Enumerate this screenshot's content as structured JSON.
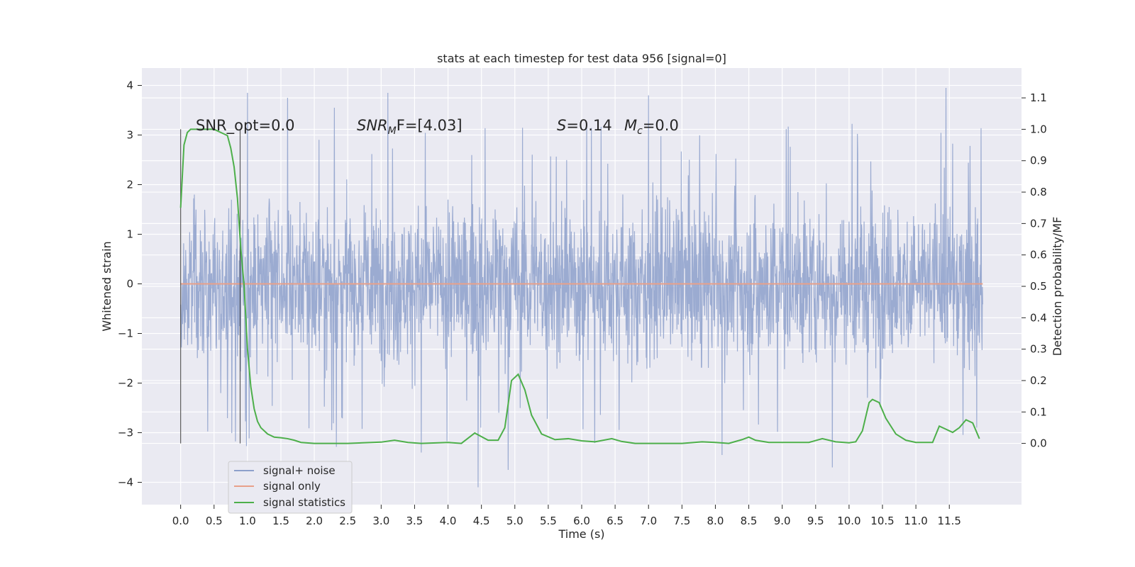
{
  "chart_data": {
    "type": "line",
    "title": "stats at each timestep for test data 956 [signal=0]",
    "xlabel": "Time (s)",
    "ylabel": "Whitened strain",
    "y2label": "Detection probability/MF",
    "xlim": [
      -0.58,
      12.58
    ],
    "ylim": [
      -4.45,
      4.35
    ],
    "y2lim": [
      -0.195,
      1.195
    ],
    "x_ticks": [
      "0.0",
      "0.5",
      "1.0",
      "1.5",
      "2.0",
      "2.5",
      "3.0",
      "3.5",
      "4.0",
      "4.5",
      "5.0",
      "5.5",
      "6.0",
      "6.5",
      "7.0",
      "7.5",
      "8.0",
      "8.5",
      "9.0",
      "9.5",
      "10.0",
      "10.5",
      "11.0",
      "11.5"
    ],
    "y_ticks": [
      "4",
      "3",
      "2",
      "1",
      "0",
      "−1",
      "−2",
      "−3",
      "−4"
    ],
    "y2_ticks": [
      "1.1",
      "1.0",
      "0.9",
      "0.8",
      "0.7",
      "0.6",
      "0.5",
      "0.4",
      "0.3",
      "0.2",
      "0.1",
      "0.0"
    ],
    "grid": true,
    "annotations": {
      "snr_opt": "SNR_opt=0.0",
      "snr_mf_label": "SNR",
      "snr_mf_sub": "M",
      "snr_mf_rest": "F=[4.03]",
      "s_label": "S",
      "s_value": "=0.14",
      "mc_label": "M",
      "mc_sub": "c",
      "mc_value": "=0.0"
    },
    "markers": {
      "vertical_lines_x": [
        0.0,
        0.89
      ]
    },
    "legend": {
      "position": "lower-left",
      "entries": [
        "signal+ noise",
        "signal only",
        "signal statistics"
      ]
    },
    "series": [
      {
        "name": "signal+ noise",
        "axis": "left",
        "color": "#8da0cb",
        "style": "noise",
        "x_range": [
          0.0,
          12.0
        ],
        "envelope_abs": 1.8,
        "spike_peaks": [
          {
            "x": 1.0,
            "y": 3.85
          },
          {
            "x": 1.6,
            "y": 3.75
          },
          {
            "x": 2.3,
            "y": 3.55
          },
          {
            "x": 3.1,
            "y": 3.85
          },
          {
            "x": 7.0,
            "y": 3.8
          },
          {
            "x": 11.45,
            "y": 3.95
          },
          {
            "x": 4.45,
            "y": -4.1
          },
          {
            "x": 4.9,
            "y": -3.75
          },
          {
            "x": 9.75,
            "y": -3.7
          },
          {
            "x": 8.1,
            "y": -3.45
          },
          {
            "x": 3.6,
            "y": -3.4
          }
        ]
      },
      {
        "name": "signal only",
        "axis": "left",
        "color": "#e8a08a",
        "x": [
          0.0,
          12.0
        ],
        "y": [
          0.0,
          0.0
        ]
      },
      {
        "name": "signal statistics",
        "axis": "right",
        "color": "#4daf4a",
        "x": [
          0.0,
          0.05,
          0.1,
          0.15,
          0.2,
          0.3,
          0.4,
          0.5,
          0.6,
          0.7,
          0.75,
          0.8,
          0.85,
          0.9,
          0.95,
          1.0,
          1.05,
          1.1,
          1.15,
          1.2,
          1.3,
          1.4,
          1.5,
          1.6,
          1.7,
          1.8,
          2.0,
          2.5,
          3.0,
          3.2,
          3.4,
          3.6,
          4.0,
          4.2,
          4.4,
          4.6,
          4.75,
          4.85,
          4.95,
          5.05,
          5.15,
          5.25,
          5.4,
          5.6,
          5.8,
          6.0,
          6.2,
          6.45,
          6.6,
          6.8,
          7.0,
          7.5,
          7.8,
          8.0,
          8.2,
          8.4,
          8.5,
          8.6,
          8.8,
          9.0,
          9.4,
          9.6,
          9.8,
          10.0,
          10.1,
          10.2,
          10.3,
          10.35,
          10.45,
          10.55,
          10.7,
          10.85,
          11.0,
          11.15,
          11.25,
          11.35,
          11.45,
          11.55,
          11.65,
          11.75,
          11.85,
          11.95
        ],
        "y": [
          0.75,
          0.95,
          0.99,
          1.0,
          1.0,
          1.0,
          1.0,
          1.0,
          0.99,
          0.98,
          0.94,
          0.88,
          0.78,
          0.62,
          0.5,
          0.3,
          0.18,
          0.11,
          0.07,
          0.05,
          0.03,
          0.02,
          0.018,
          0.015,
          0.01,
          0.003,
          0.0,
          0.0,
          0.004,
          0.01,
          0.003,
          0.0,
          0.003,
          0.0,
          0.033,
          0.01,
          0.01,
          0.05,
          0.2,
          0.22,
          0.17,
          0.09,
          0.03,
          0.012,
          0.015,
          0.008,
          0.005,
          0.015,
          0.006,
          0.0,
          0.0,
          0.0,
          0.005,
          0.003,
          0.0,
          0.012,
          0.02,
          0.01,
          0.003,
          0.003,
          0.003,
          0.015,
          0.005,
          0.002,
          0.005,
          0.04,
          0.13,
          0.14,
          0.13,
          0.08,
          0.03,
          0.01,
          0.003,
          0.003,
          0.003,
          0.055,
          0.045,
          0.035,
          0.05,
          0.075,
          0.065,
          0.015
        ]
      }
    ]
  }
}
